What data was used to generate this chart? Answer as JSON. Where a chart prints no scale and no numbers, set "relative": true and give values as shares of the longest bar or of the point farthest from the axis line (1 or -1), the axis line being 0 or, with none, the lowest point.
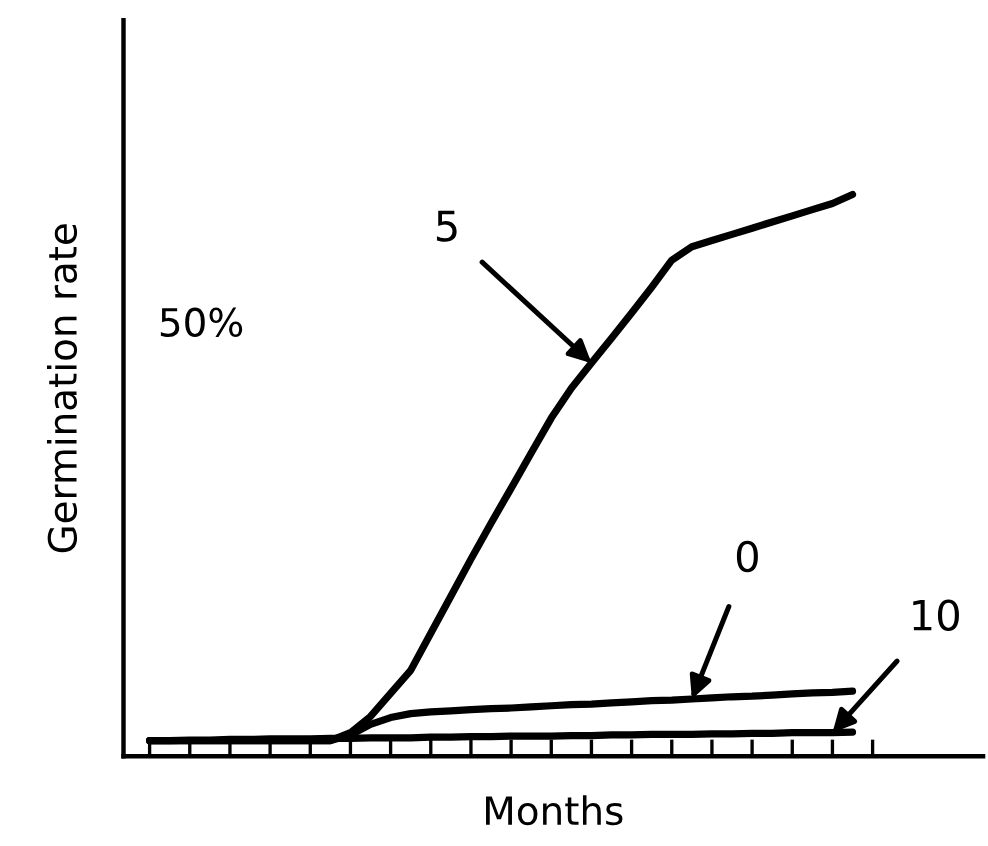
{
  "chart_data": {
    "type": "line",
    "relative": true,
    "xlabel": "Months",
    "ylabel": "Germination rate",
    "categories": [
      null,
      null,
      null,
      null,
      null,
      null,
      null,
      null,
      null,
      null,
      null,
      null,
      null,
      null,
      null,
      null,
      null,
      null,
      null,
      null,
      null,
      null,
      null,
      null,
      null,
      null,
      null,
      null,
      null,
      null,
      null,
      null,
      null,
      null,
      null,
      null
    ],
    "tick_labels": false,
    "grid": false,
    "legend": false,
    "series": [
      {
        "color": "#000000",
        "values": [
          0.028,
          0.028,
          0.028,
          0.028,
          0.028,
          0.028,
          0.028,
          0.028,
          0.028,
          0.028,
          0.042,
          0.071,
          0.112,
          0.153,
          0.219,
          0.285,
          0.351,
          0.415,
          0.477,
          0.54,
          0.602,
          0.655,
          0.7,
          0.744,
          0.789,
          0.835,
          0.883,
          0.907,
          0.918,
          0.929,
          0.94,
          0.951,
          0.962,
          0.973,
          0.984,
          1
        ]
      },
      {
        "color": "#000000",
        "values": [
          0.028,
          0.028,
          0.028,
          0.028,
          0.028,
          0.028,
          0.028,
          0.028,
          0.028,
          0.028,
          0.038,
          0.057,
          0.069,
          0.076,
          0.079,
          0.081,
          0.083,
          0.085,
          0.086,
          0.088,
          0.09,
          0.092,
          0.093,
          0.095,
          0.097,
          0.099,
          0.1,
          0.102,
          0.104,
          0.106,
          0.107,
          0.109,
          0.111,
          0.113,
          0.114,
          0.116
        ]
      },
      {
        "color": "#000000",
        "values": [
          0.028,
          0.028,
          0.029,
          0.029,
          0.03,
          0.03,
          0.031,
          0.031,
          0.031,
          0.032,
          0.032,
          0.033,
          0.033,
          0.033,
          0.034,
          0.034,
          0.035,
          0.035,
          0.036,
          0.036,
          0.036,
          0.037,
          0.037,
          0.038,
          0.038,
          0.039,
          0.039,
          0.039,
          0.04,
          0.04,
          0.041,
          0.041,
          0.042,
          0.042,
          0.042,
          0.043
        ]
      }
    ],
    "annotations": [
      "50%",
      "5",
      "0",
      "10"
    ]
  }
}
